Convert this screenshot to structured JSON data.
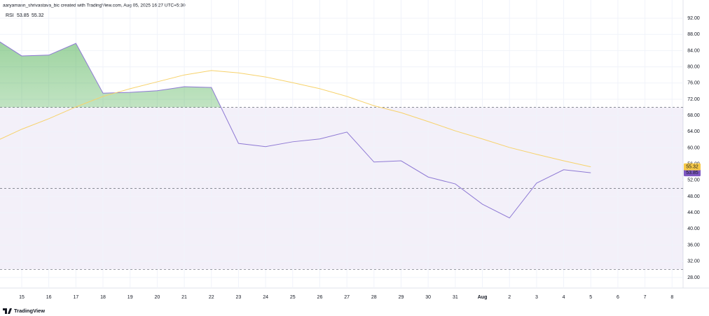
{
  "header": "aaryamann_shrivastava_bic created with TradingView.com, Aug 05, 2025 16:27 UTC+5:30",
  "logo": "TradingView",
  "chart_data": {
    "type": "line",
    "categories": [
      null,
      "15",
      "16",
      "17",
      "18",
      "19",
      "20",
      "21",
      "22",
      "23",
      "24",
      "25",
      "26",
      "27",
      "28",
      "29",
      "30",
      "31",
      "Aug",
      "2",
      "3",
      "4",
      "5",
      "6",
      "7",
      "8"
    ],
    "series": [
      {
        "name": "RSI",
        "color": "#8e79d4",
        "values": [
          87,
          82.7,
          82.9,
          85.8,
          73.5,
          73.7,
          74.1,
          75.1,
          74.9,
          61.1,
          60.3,
          61.5,
          62.2,
          63.9,
          56.5,
          56.8,
          52.8,
          51.1,
          46.1,
          42.7,
          51.3,
          54.6,
          53.85,
          null,
          null,
          null
        ]
      },
      {
        "color": "#f7d26b",
        "values": [
          61.5,
          64.6,
          67.2,
          70.1,
          72.7,
          74.6,
          76.3,
          78.0,
          79.1,
          78.5,
          77.5,
          76.1,
          74.6,
          72.7,
          70.4,
          68.7,
          66.5,
          64.2,
          62.2,
          60.1,
          58.4,
          56.8,
          55.32,
          null,
          null,
          null
        ]
      }
    ],
    "ylim": [
      25.4,
      96.5
    ],
    "yticks": [
      {
        "value": 92,
        "label": "92.00"
      },
      {
        "value": 88,
        "label": "88.00"
      },
      {
        "value": 84,
        "label": "84.00"
      },
      {
        "value": 80,
        "label": "80.00"
      },
      {
        "value": 76,
        "label": "76.00"
      },
      {
        "value": 72,
        "label": "72.00"
      },
      {
        "value": 68,
        "label": "68.00"
      },
      {
        "value": 64,
        "label": "64.00"
      },
      {
        "value": 60,
        "label": "60.00"
      },
      {
        "value": 56,
        "label": "56.00"
      },
      {
        "value": 52,
        "label": "52.00"
      },
      {
        "value": 48,
        "label": "48.00"
      },
      {
        "value": 44,
        "label": "44.00"
      },
      {
        "value": 40,
        "label": "40.00"
      },
      {
        "value": 36,
        "label": "36.00"
      },
      {
        "value": 32,
        "label": "32.00"
      },
      {
        "value": 28,
        "label": "28.00"
      }
    ],
    "bands": {
      "upper": 70,
      "middle": 50,
      "lower": 30,
      "color": "#7e57c2"
    },
    "grid": true
  }
}
